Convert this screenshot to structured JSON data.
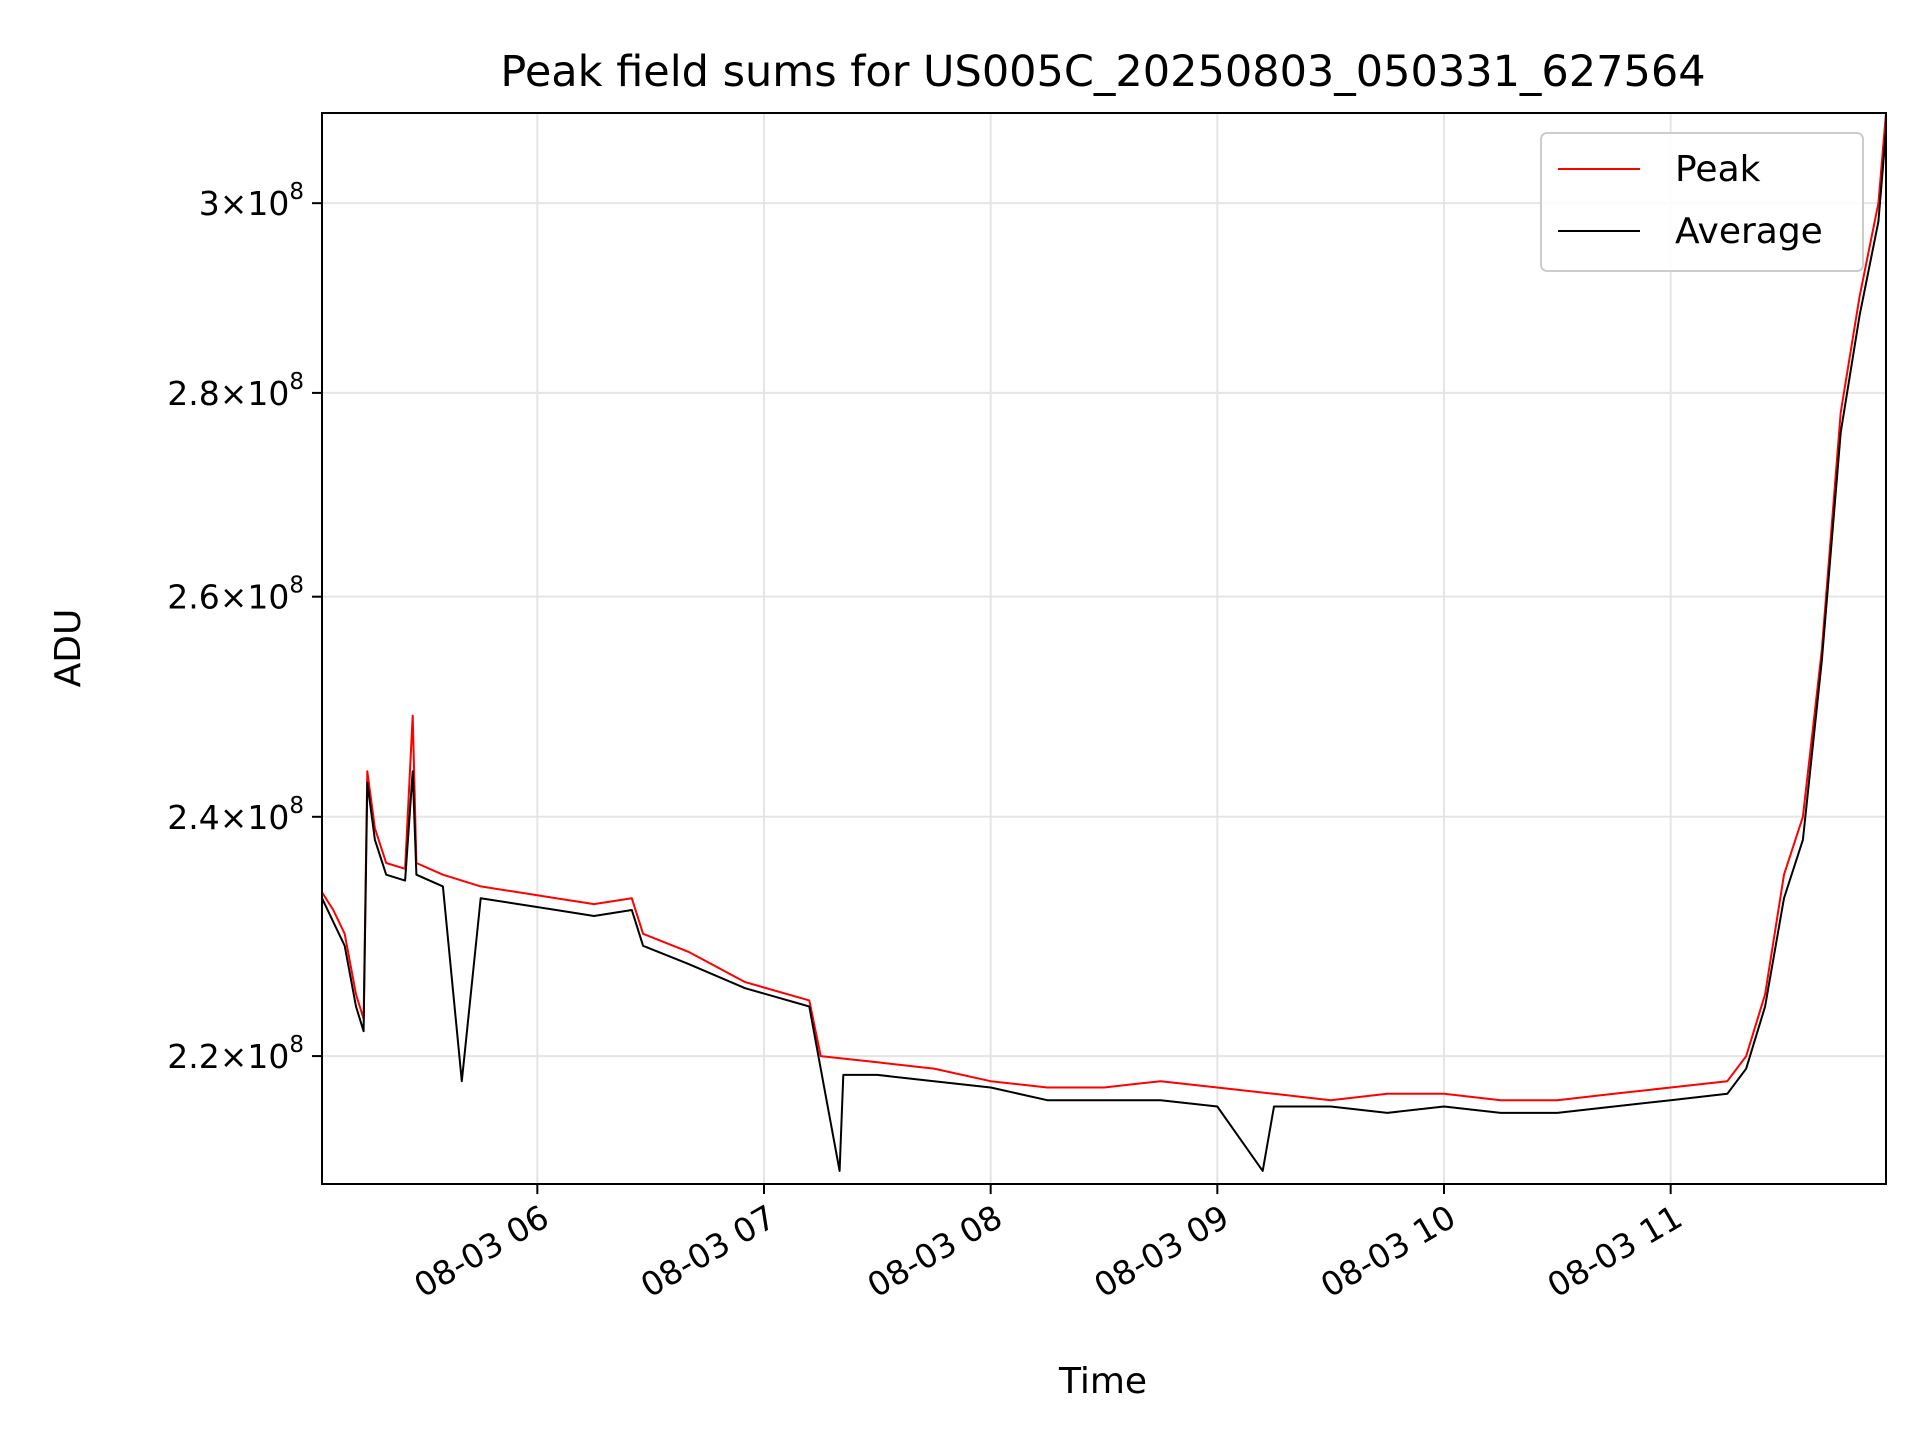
{
  "chart_data": {
    "type": "line",
    "title": "Peak field sums for US005C_20250803_050331_627564",
    "xlabel": "Time",
    "ylabel": "ADU",
    "yscale": "log",
    "grid": true,
    "legend_position": "top-right",
    "xlim": [
      "2025-08-03 05:03",
      "2025-08-03 11:57"
    ],
    "ylim": [
      210000000.0,
      310000000.0
    ],
    "xticks": [
      {
        "value": "2025-08-03 06:00",
        "label": "08-03 06"
      },
      {
        "value": "2025-08-03 07:00",
        "label": "08-03 07"
      },
      {
        "value": "2025-08-03 08:00",
        "label": "08-03 08"
      },
      {
        "value": "2025-08-03 09:00",
        "label": "08-03 09"
      },
      {
        "value": "2025-08-03 10:00",
        "label": "08-03 10"
      },
      {
        "value": "2025-08-03 11:00",
        "label": "08-03 11"
      }
    ],
    "yticks": [
      {
        "value": 220000000.0,
        "mantissa": "2.2",
        "exponent": "8"
      },
      {
        "value": 240000000.0,
        "mantissa": "2.4",
        "exponent": "8"
      },
      {
        "value": 260000000.0,
        "mantissa": "2.6",
        "exponent": "8"
      },
      {
        "value": 280000000.0,
        "mantissa": "2.8",
        "exponent": "8"
      },
      {
        "value": 300000000.0,
        "mantissa": "3",
        "exponent": "8"
      }
    ],
    "series": [
      {
        "name": "Peak",
        "color": "#ff0000",
        "points": [
          [
            "2025-08-03 05:03",
            233500000.0
          ],
          [
            "2025-08-03 05:06",
            232000000.0
          ],
          [
            "2025-08-03 05:09",
            230000000.0
          ],
          [
            "2025-08-03 05:12",
            225000000.0
          ],
          [
            "2025-08-03 05:14",
            223000000.0
          ],
          [
            "2025-08-03 05:15",
            244000000.0
          ],
          [
            "2025-08-03 05:17",
            239000000.0
          ],
          [
            "2025-08-03 05:20",
            236000000.0
          ],
          [
            "2025-08-03 05:25",
            235500000.0
          ],
          [
            "2025-08-03 05:27",
            249000000.0
          ],
          [
            "2025-08-03 05:28",
            236000000.0
          ],
          [
            "2025-08-03 05:35",
            235000000.0
          ],
          [
            "2025-08-03 05:45",
            234000000.0
          ],
          [
            "2025-08-03 05:55",
            233500000.0
          ],
          [
            "2025-08-03 06:05",
            233000000.0
          ],
          [
            "2025-08-03 06:15",
            232500000.0
          ],
          [
            "2025-08-03 06:25",
            233000000.0
          ],
          [
            "2025-08-03 06:28",
            230000000.0
          ],
          [
            "2025-08-03 06:40",
            228500000.0
          ],
          [
            "2025-08-03 06:55",
            226000000.0
          ],
          [
            "2025-08-03 07:12",
            224500000.0
          ],
          [
            "2025-08-03 07:15",
            220000000.0
          ],
          [
            "2025-08-03 07:30",
            219500000.0
          ],
          [
            "2025-08-03 07:45",
            219000000.0
          ],
          [
            "2025-08-03 08:00",
            218000000.0
          ],
          [
            "2025-08-03 08:15",
            217500000.0
          ],
          [
            "2025-08-03 08:30",
            217500000.0
          ],
          [
            "2025-08-03 08:45",
            218000000.0
          ],
          [
            "2025-08-03 09:00",
            217500000.0
          ],
          [
            "2025-08-03 09:15",
            217000000.0
          ],
          [
            "2025-08-03 09:30",
            216500000.0
          ],
          [
            "2025-08-03 09:45",
            217000000.0
          ],
          [
            "2025-08-03 10:00",
            217000000.0
          ],
          [
            "2025-08-03 10:15",
            216500000.0
          ],
          [
            "2025-08-03 10:30",
            216500000.0
          ],
          [
            "2025-08-03 10:45",
            217000000.0
          ],
          [
            "2025-08-03 11:00",
            217500000.0
          ],
          [
            "2025-08-03 11:15",
            218000000.0
          ],
          [
            "2025-08-03 11:20",
            220000000.0
          ],
          [
            "2025-08-03 11:25",
            225000000.0
          ],
          [
            "2025-08-03 11:30",
            235000000.0
          ],
          [
            "2025-08-03 11:35",
            240000000.0
          ],
          [
            "2025-08-03 11:40",
            255000000.0
          ],
          [
            "2025-08-03 11:45",
            278000000.0
          ],
          [
            "2025-08-03 11:50",
            290000000.0
          ],
          [
            "2025-08-03 11:55",
            300000000.0
          ],
          [
            "2025-08-03 11:57",
            310000000.0
          ]
        ]
      },
      {
        "name": "Average",
        "color": "#000000",
        "points": [
          [
            "2025-08-03 05:03",
            233000000.0
          ],
          [
            "2025-08-03 05:06",
            231000000.0
          ],
          [
            "2025-08-03 05:09",
            229000000.0
          ],
          [
            "2025-08-03 05:12",
            224000000.0
          ],
          [
            "2025-08-03 05:14",
            222000000.0
          ],
          [
            "2025-08-03 05:15",
            243000000.0
          ],
          [
            "2025-08-03 05:17",
            238000000.0
          ],
          [
            "2025-08-03 05:20",
            235000000.0
          ],
          [
            "2025-08-03 05:25",
            234500000.0
          ],
          [
            "2025-08-03 05:27",
            244000000.0
          ],
          [
            "2025-08-03 05:28",
            235000000.0
          ],
          [
            "2025-08-03 05:35",
            234000000.0
          ],
          [
            "2025-08-03 05:40",
            218000000.0
          ],
          [
            "2025-08-03 05:45",
            233000000.0
          ],
          [
            "2025-08-03 05:55",
            232500000.0
          ],
          [
            "2025-08-03 06:05",
            232000000.0
          ],
          [
            "2025-08-03 06:15",
            231500000.0
          ],
          [
            "2025-08-03 06:25",
            232000000.0
          ],
          [
            "2025-08-03 06:28",
            229000000.0
          ],
          [
            "2025-08-03 06:40",
            227500000.0
          ],
          [
            "2025-08-03 06:55",
            225500000.0
          ],
          [
            "2025-08-03 07:12",
            224000000.0
          ],
          [
            "2025-08-03 07:15",
            219000000.0
          ],
          [
            "2025-08-03 07:20",
            211000000.0
          ],
          [
            "2025-08-03 07:21",
            218500000.0
          ],
          [
            "2025-08-03 07:30",
            218500000.0
          ],
          [
            "2025-08-03 07:45",
            218000000.0
          ],
          [
            "2025-08-03 08:00",
            217500000.0
          ],
          [
            "2025-08-03 08:15",
            216500000.0
          ],
          [
            "2025-08-03 08:30",
            216500000.0
          ],
          [
            "2025-08-03 08:45",
            216500000.0
          ],
          [
            "2025-08-03 09:00",
            216000000.0
          ],
          [
            "2025-08-03 09:12",
            211000000.0
          ],
          [
            "2025-08-03 09:15",
            216000000.0
          ],
          [
            "2025-08-03 09:30",
            216000000.0
          ],
          [
            "2025-08-03 09:45",
            215500000.0
          ],
          [
            "2025-08-03 10:00",
            216000000.0
          ],
          [
            "2025-08-03 10:15",
            215500000.0
          ],
          [
            "2025-08-03 10:30",
            215500000.0
          ],
          [
            "2025-08-03 10:45",
            216000000.0
          ],
          [
            "2025-08-03 11:00",
            216500000.0
          ],
          [
            "2025-08-03 11:15",
            217000000.0
          ],
          [
            "2025-08-03 11:20",
            219000000.0
          ],
          [
            "2025-08-03 11:25",
            224000000.0
          ],
          [
            "2025-08-03 11:30",
            233000000.0
          ],
          [
            "2025-08-03 11:35",
            238000000.0
          ],
          [
            "2025-08-03 11:40",
            254000000.0
          ],
          [
            "2025-08-03 11:45",
            276000000.0
          ],
          [
            "2025-08-03 11:50",
            288000000.0
          ],
          [
            "2025-08-03 11:55",
            298000000.0
          ],
          [
            "2025-08-03 11:57",
            308000000.0
          ]
        ]
      }
    ]
  }
}
